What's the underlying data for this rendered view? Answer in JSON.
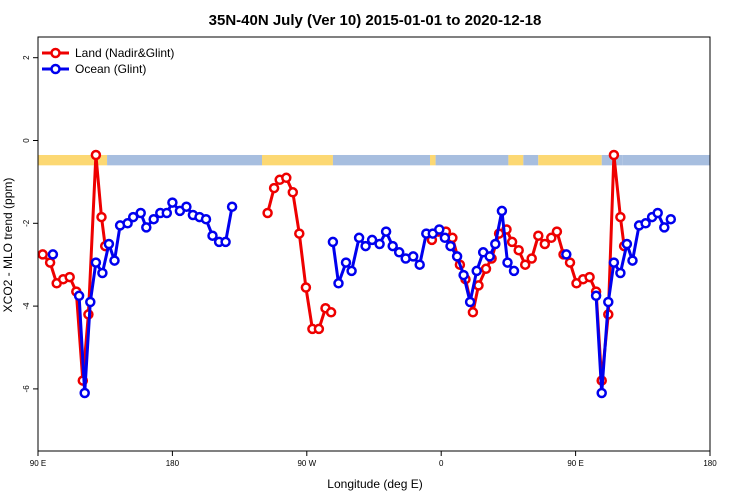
{
  "chart_data": {
    "type": "line",
    "title": "35N-40N July (Ver 10)   2015-01-01 to 2020-12-18",
    "xlabel": "Longitude (deg E)",
    "ylabel": "XCO2 - MLO trend (ppm)",
    "xlim": [
      90,
      450
    ],
    "ylim": [
      -7.5,
      2.5
    ],
    "x_ticks": [
      {
        "value": 90,
        "label": "90 E"
      },
      {
        "value": 162,
        "label": "180"
      },
      {
        "value": 234,
        "label": "90 W"
      },
      {
        "value": 306,
        "label": "0"
      },
      {
        "value": 378,
        "label": "90 E"
      },
      {
        "value": 450,
        "label": "180"
      }
    ],
    "y_ticks": [
      {
        "value": -6,
        "label": "-6"
      },
      {
        "value": -4,
        "label": "-4"
      },
      {
        "value": -2,
        "label": "-2"
      },
      {
        "value": 0,
        "label": "0"
      },
      {
        "value": 2,
        "label": "2"
      }
    ],
    "legend_position": "top-left",
    "series": [
      {
        "name": "Land (Nadir&Glint)",
        "color": "#ee0000",
        "points": [
          [
            92.5,
            -2.75
          ],
          [
            96.5,
            -2.95
          ],
          [
            100,
            -3.45
          ],
          [
            103.5,
            -3.35
          ],
          [
            107,
            -3.3
          ],
          [
            110.5,
            -3.65
          ],
          [
            114,
            -5.8
          ],
          [
            117,
            -4.2
          ],
          [
            121,
            -0.35
          ],
          [
            124,
            -1.85
          ],
          [
            126,
            -2.55
          ],
          [
            213,
            -1.75
          ],
          [
            216.5,
            -1.15
          ],
          [
            219.5,
            -0.95
          ],
          [
            223,
            -0.9
          ],
          [
            226.5,
            -1.25
          ],
          [
            230,
            -2.25
          ],
          [
            233.5,
            -3.55
          ],
          [
            237,
            -4.55
          ],
          [
            240.5,
            -4.55
          ],
          [
            244,
            -4.05
          ],
          [
            247,
            -4.15
          ],
          [
            301,
            -2.4
          ],
          [
            304.5,
            -2.2
          ],
          [
            308.5,
            -2.2
          ],
          [
            312,
            -2.35
          ],
          [
            316,
            -3.0
          ],
          [
            319,
            -3.35
          ],
          [
            323,
            -4.15
          ],
          [
            326,
            -3.5
          ],
          [
            330,
            -3.1
          ],
          [
            333,
            -2.85
          ],
          [
            337,
            -2.25
          ],
          [
            341,
            -2.15
          ],
          [
            344,
            -2.45
          ],
          [
            347.5,
            -2.65
          ],
          [
            351,
            -3.0
          ],
          [
            354.5,
            -2.85
          ],
          [
            358,
            -2.3
          ],
          [
            361.5,
            -2.5
          ],
          [
            365,
            -2.35
          ],
          [
            368,
            -2.2
          ],
          [
            371.5,
            -2.75
          ],
          [
            375,
            -2.95
          ],
          [
            378.5,
            -3.45
          ],
          [
            382,
            -3.35
          ],
          [
            385.5,
            -3.3
          ],
          [
            389,
            -3.65
          ],
          [
            392,
            -5.8
          ],
          [
            395.5,
            -4.2
          ],
          [
            398.5,
            -0.35
          ],
          [
            402,
            -1.85
          ],
          [
            404,
            -2.55
          ]
        ]
      },
      {
        "name": "Ocean (Glint)",
        "color": "#0000ee",
        "points": [
          [
            98,
            -2.75
          ],
          [
            112,
            -3.75
          ],
          [
            115,
            -6.1
          ],
          [
            118,
            -3.9
          ],
          [
            121,
            -2.95
          ],
          [
            124.5,
            -3.2
          ],
          [
            128,
            -2.5
          ],
          [
            131,
            -2.9
          ],
          [
            134,
            -2.05
          ],
          [
            138,
            -2.0
          ],
          [
            141,
            -1.85
          ],
          [
            145,
            -1.75
          ],
          [
            148,
            -2.1
          ],
          [
            152,
            -1.9
          ],
          [
            155.5,
            -1.75
          ],
          [
            159,
            -1.75
          ],
          [
            162,
            -1.5
          ],
          [
            166,
            -1.7
          ],
          [
            169.5,
            -1.6
          ],
          [
            173,
            -1.8
          ],
          [
            176.5,
            -1.85
          ],
          [
            180,
            -1.9
          ],
          [
            183.5,
            -2.3
          ],
          [
            187,
            -2.45
          ],
          [
            190.5,
            -2.45
          ],
          [
            194,
            -1.6
          ],
          [
            248,
            -2.45
          ],
          [
            251,
            -3.45
          ],
          [
            255,
            -2.95
          ],
          [
            258,
            -3.15
          ],
          [
            262,
            -2.35
          ],
          [
            265.5,
            -2.55
          ],
          [
            269,
            -2.4
          ],
          [
            273,
            -2.5
          ],
          [
            276.5,
            -2.2
          ],
          [
            280,
            -2.55
          ],
          [
            283.5,
            -2.7
          ],
          [
            287,
            -2.85
          ],
          [
            291,
            -2.8
          ],
          [
            294.5,
            -3.0
          ],
          [
            298,
            -2.25
          ],
          [
            301.5,
            -2.25
          ],
          [
            305,
            -2.15
          ],
          [
            308,
            -2.35
          ],
          [
            311,
            -2.55
          ],
          [
            314.5,
            -2.8
          ],
          [
            318,
            -3.25
          ],
          [
            321.5,
            -3.9
          ],
          [
            325,
            -3.15
          ],
          [
            328.5,
            -2.7
          ],
          [
            332,
            -2.8
          ],
          [
            335,
            -2.5
          ],
          [
            338.5,
            -1.7
          ],
          [
            341.5,
            -2.95
          ],
          [
            345,
            -3.15
          ],
          [
            373,
            -2.75
          ],
          [
            389,
            -3.75
          ],
          [
            392,
            -6.1
          ],
          [
            395.5,
            -3.9
          ],
          [
            398.5,
            -2.95
          ],
          [
            402,
            -3.2
          ],
          [
            405.5,
            -2.5
          ],
          [
            408.5,
            -2.9
          ],
          [
            412,
            -2.05
          ],
          [
            415.5,
            -2.0
          ],
          [
            419,
            -1.85
          ],
          [
            422,
            -1.75
          ],
          [
            425.5,
            -2.1
          ],
          [
            429,
            -1.9
          ]
        ]
      }
    ],
    "band": {
      "y_top": -0.35,
      "y_bottom": -0.6,
      "segments": [
        {
          "x0": 90,
          "x1": 127,
          "color": "#fcd873"
        },
        {
          "x0": 127,
          "x1": 210,
          "color": "#a7bedf"
        },
        {
          "x0": 210,
          "x1": 248,
          "color": "#fcd873"
        },
        {
          "x0": 248,
          "x1": 300,
          "color": "#a7bedf"
        },
        {
          "x0": 300,
          "x1": 303,
          "color": "#fcd873"
        },
        {
          "x0": 303,
          "x1": 342,
          "color": "#a7bedf"
        },
        {
          "x0": 342,
          "x1": 350,
          "color": "#fcd873"
        },
        {
          "x0": 350,
          "x1": 358,
          "color": "#a7bedf"
        },
        {
          "x0": 358,
          "x1": 392,
          "color": "#fcd873"
        },
        {
          "x0": 392,
          "x1": 403,
          "color": "#a7bedf"
        },
        {
          "x0": 403,
          "x1": 450,
          "color": "#a7bedf"
        }
      ]
    }
  }
}
